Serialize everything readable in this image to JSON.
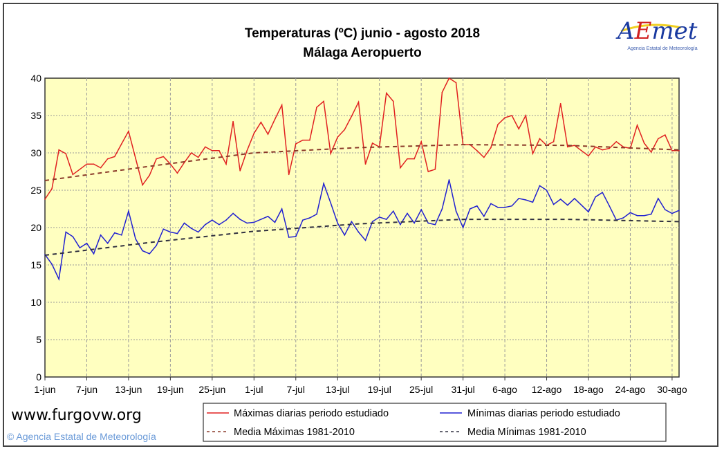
{
  "chart_data": {
    "type": "line",
    "title": "Temperaturas (ºC) junio - agosto 2018",
    "subtitle": "Málaga Aeropuerto",
    "xlabel": "",
    "ylabel": "",
    "ylim": [
      0,
      40
    ],
    "yticks": [
      0,
      5,
      10,
      15,
      20,
      25,
      30,
      35,
      40
    ],
    "xtick_labels": [
      "1-jun",
      "7-jun",
      "13-jun",
      "19-jun",
      "25-jun",
      "1-jul",
      "7-jul",
      "13-jul",
      "19-jul",
      "25-jul",
      "31-jul",
      "6-ago",
      "12-ago",
      "18-ago",
      "24-ago",
      "30-ago"
    ],
    "grid": true,
    "legend_position": "bottom",
    "background_color": "#ffffc0",
    "x": [
      "1-jun",
      "2-jun",
      "3-jun",
      "4-jun",
      "5-jun",
      "6-jun",
      "7-jun",
      "8-jun",
      "9-jun",
      "10-jun",
      "11-jun",
      "12-jun",
      "13-jun",
      "14-jun",
      "15-jun",
      "16-jun",
      "17-jun",
      "18-jun",
      "19-jun",
      "20-jun",
      "21-jun",
      "22-jun",
      "23-jun",
      "24-jun",
      "25-jun",
      "26-jun",
      "27-jun",
      "28-jun",
      "29-jun",
      "30-jun",
      "1-jul",
      "2-jul",
      "3-jul",
      "4-jul",
      "5-jul",
      "6-jul",
      "7-jul",
      "8-jul",
      "9-jul",
      "10-jul",
      "11-jul",
      "12-jul",
      "13-jul",
      "14-jul",
      "15-jul",
      "16-jul",
      "17-jul",
      "18-jul",
      "19-jul",
      "20-jul",
      "21-jul",
      "22-jul",
      "23-jul",
      "24-jul",
      "25-jul",
      "26-jul",
      "27-jul",
      "28-jul",
      "29-jul",
      "30-jul",
      "31-jul",
      "1-ago",
      "2-ago",
      "3-ago",
      "4-ago",
      "5-ago",
      "6-ago",
      "7-ago",
      "8-ago",
      "9-ago",
      "10-ago",
      "11-ago",
      "12-ago",
      "13-ago",
      "14-ago",
      "15-ago",
      "16-ago",
      "17-ago",
      "18-ago",
      "19-ago",
      "20-ago",
      "21-ago",
      "22-ago",
      "23-ago",
      "24-ago",
      "25-ago",
      "26-ago",
      "27-ago",
      "28-ago",
      "29-ago",
      "30-ago",
      "31-ago"
    ],
    "series": [
      {
        "name": "Máximas diarias periodo estudiado",
        "color": "#e02020",
        "style": "solid",
        "values": [
          23.8,
          25.2,
          30.4,
          29.9,
          27.1,
          27.8,
          28.5,
          28.5,
          28.0,
          29.2,
          29.5,
          31.2,
          32.9,
          29.3,
          25.7,
          27.0,
          29.2,
          29.5,
          28.5,
          27.3,
          28.7,
          30.0,
          29.4,
          30.8,
          30.3,
          30.3,
          28.5,
          34.2,
          27.6,
          30.3,
          32.6,
          34.1,
          32.5,
          34.5,
          36.4,
          27.1,
          31.2,
          31.7,
          31.7,
          36.1,
          36.9,
          29.9,
          32.1,
          33.1,
          34.9,
          36.8,
          28.5,
          31.3,
          30.8,
          38.0,
          36.9,
          28.0,
          29.2,
          29.2,
          31.5,
          27.5,
          27.8,
          38.1,
          40.0,
          39.4,
          31.1,
          31.1,
          30.3,
          29.4,
          30.7,
          33.8,
          34.7,
          35.0,
          33.2,
          35.0,
          29.9,
          31.9,
          31.0,
          31.5,
          36.6,
          30.8,
          31.0,
          30.3,
          29.6,
          30.8,
          30.4,
          30.6,
          31.5,
          30.8,
          30.6,
          33.7,
          31.3,
          30.1,
          31.9,
          32.4,
          30.3,
          30.3
        ]
      },
      {
        "name": "Mínimas diarias periodo estudiado",
        "color": "#2020d0",
        "style": "solid",
        "values": [
          16.4,
          15.1,
          13.1,
          19.4,
          18.8,
          17.3,
          17.9,
          16.5,
          19.0,
          17.9,
          19.3,
          19.0,
          22.2,
          18.5,
          16.9,
          16.5,
          17.6,
          19.8,
          19.4,
          19.2,
          20.6,
          19.9,
          19.4,
          20.4,
          21.0,
          20.4,
          21.0,
          21.9,
          21.1,
          20.6,
          20.7,
          21.1,
          21.5,
          20.7,
          22.5,
          18.7,
          18.8,
          21.0,
          21.3,
          21.8,
          25.9,
          23.3,
          20.6,
          19.0,
          20.8,
          19.4,
          18.3,
          20.8,
          21.4,
          21.1,
          22.2,
          20.4,
          21.9,
          20.6,
          22.4,
          20.6,
          20.4,
          22.5,
          26.4,
          22.2,
          20.0,
          22.5,
          22.9,
          21.5,
          23.2,
          22.7,
          22.7,
          22.9,
          23.9,
          23.7,
          23.4,
          25.6,
          25.0,
          23.1,
          23.8,
          23.0,
          23.9,
          23.0,
          22.1,
          24.1,
          24.7,
          22.9,
          21.0,
          21.3,
          22.0,
          21.6,
          21.6,
          21.8,
          23.9,
          22.4,
          21.9,
          22.3
        ]
      },
      {
        "name": "Media Máximas 1981-2010",
        "color": "#8b3a2a",
        "style": "dashed",
        "points": [
          [
            "1-jun",
            26.3
          ],
          [
            "16-jun",
            28.2
          ],
          [
            "1-jul",
            30.0
          ],
          [
            "16-jul",
            30.7
          ],
          [
            "31-jul",
            31.1
          ],
          [
            "15-ago",
            31.0
          ],
          [
            "31-ago",
            30.4
          ]
        ]
      },
      {
        "name": "Media Mínimas 1981-2010",
        "color": "#303040",
        "style": "dashed",
        "points": [
          [
            "1-jun",
            16.3
          ],
          [
            "16-jun",
            18.0
          ],
          [
            "1-jul",
            19.5
          ],
          [
            "16-jul",
            20.5
          ],
          [
            "31-jul",
            21.1
          ],
          [
            "15-ago",
            21.1
          ],
          [
            "31-ago",
            20.8
          ]
        ]
      }
    ]
  },
  "logo": {
    "text": "AEmet",
    "subtitle": "Agencia Estatal de Meteorología"
  },
  "footer": {
    "copyright": "© Agencia Estatal de Meteorología",
    "watermark": "www.furgovw.org"
  }
}
